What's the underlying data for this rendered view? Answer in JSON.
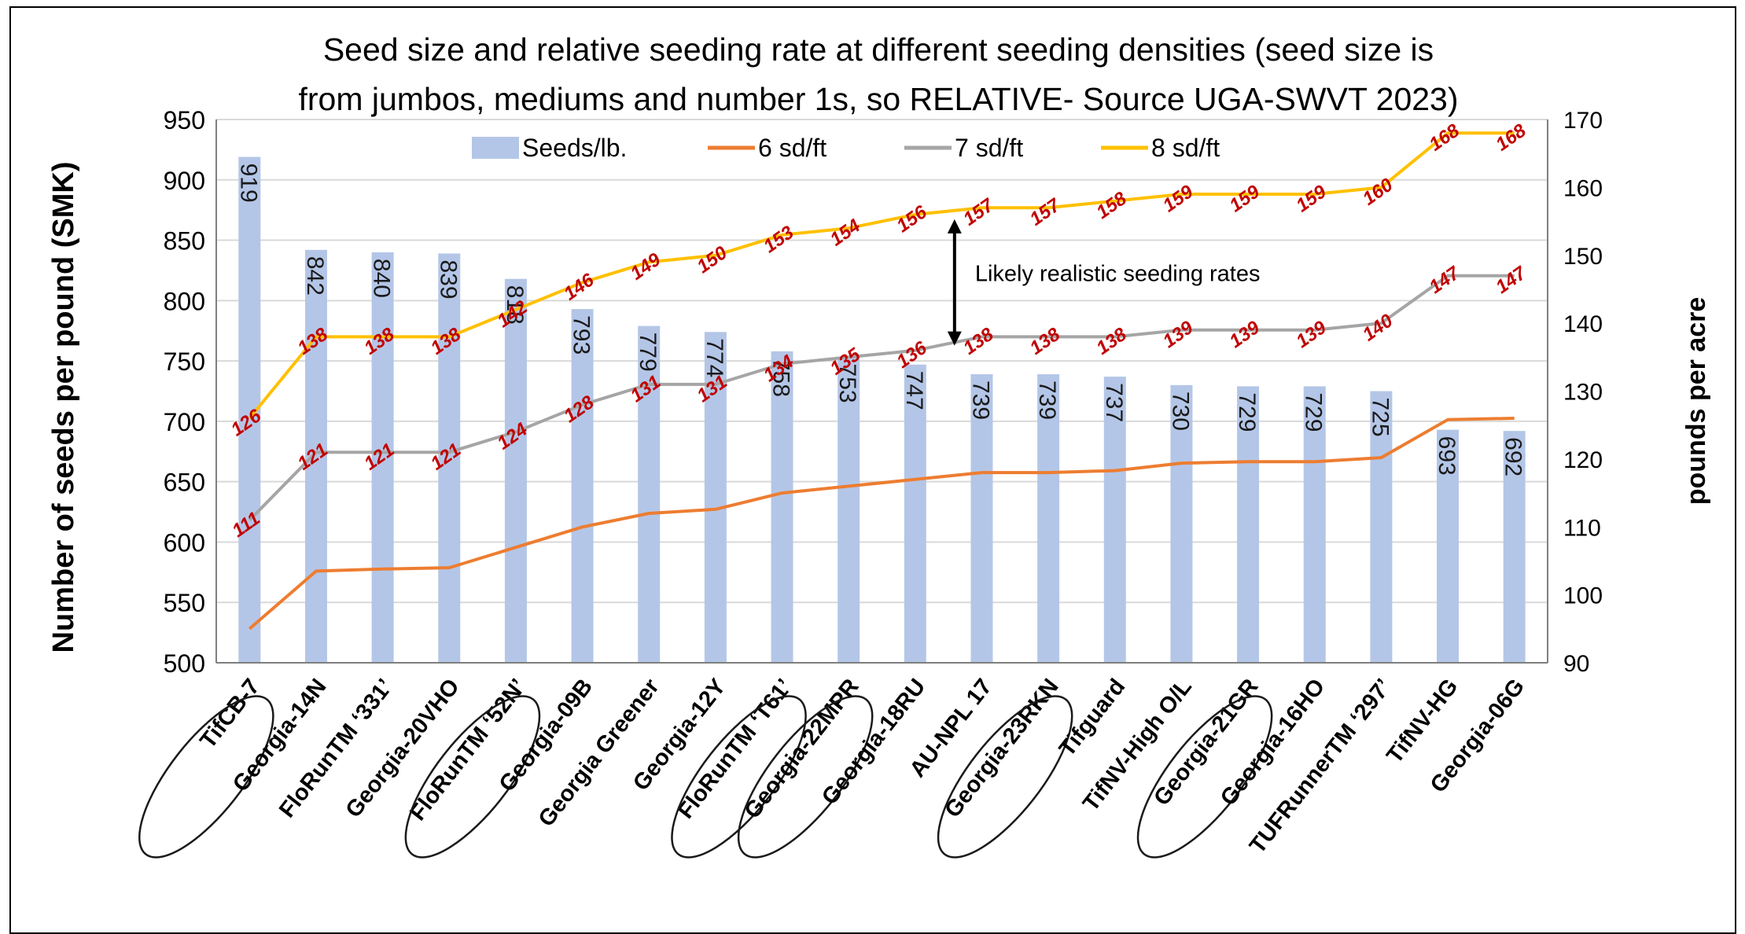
{
  "chart_data": {
    "type": "bar",
    "title": "Seed size and relative seeding rate at different seeding densities (seed size is from jumbos, mediums and number 1s, so RELATIVE- Source UGA-SWVT 2023)",
    "title_lines": [
      "Seed size and relative seeding rate at different seeding densities (seed size is",
      "from jumbos, mediums and number 1s, so RELATIVE- Source UGA-SWVT 2023)"
    ],
    "ylabel": "Number of seeds per pound (SMK)",
    "y2label": "pounds per acre",
    "ylim": [
      500,
      950
    ],
    "y2lim": [
      90,
      170
    ],
    "yticks": [
      "500",
      "550",
      "600",
      "650",
      "700",
      "750",
      "800",
      "850",
      "900",
      "950"
    ],
    "y2ticks": [
      "90",
      "100",
      "110",
      "120",
      "130",
      "140",
      "150",
      "160",
      "170"
    ],
    "grid": true,
    "legend_position": "top",
    "categories": [
      "TifCB-7",
      "Georgia-14N",
      "FloRunTM ‘331’",
      "Georgia-20VHO",
      "FloRunTM ‘52N’",
      "Georgia-09B",
      "Georgia Greener",
      "Georgia-12Y",
      "FloRunTM ‘T61’",
      "Georgia-22MPR",
      "Georgia-18RU",
      "AU-NPL 17",
      "Georgia-23RKN",
      "Tifguard",
      "TifNV-High O/L",
      "Georgia-21GR",
      "Georgia-16HO",
      "TUFRunnerTM ‘297’",
      "TifNV-HG",
      "Georgia-06G"
    ],
    "circled": [
      true,
      false,
      false,
      false,
      true,
      false,
      false,
      false,
      true,
      true,
      false,
      false,
      true,
      false,
      false,
      true,
      false,
      false,
      false,
      false
    ],
    "series": [
      {
        "name": "Seeds/lb.",
        "kind": "bar",
        "axis": "left",
        "color": "#b4c6e7",
        "values": [
          919,
          842,
          840,
          839,
          818,
          793,
          779,
          774,
          758,
          753,
          747,
          739,
          739,
          737,
          730,
          729,
          729,
          725,
          693,
          692
        ],
        "labels": [
          "919",
          "842",
          "840",
          "839",
          "818",
          "793",
          "779",
          "774",
          "758",
          "753",
          "747",
          "739",
          "739",
          "737",
          "730",
          "729",
          "729",
          "725",
          "693",
          "692"
        ]
      },
      {
        "name": "6 sd/ft",
        "kind": "line",
        "axis": "right",
        "color": "#ed7d31",
        "values": [
          95,
          103.5,
          103.8,
          104,
          107,
          110,
          112,
          112.6,
          115,
          116,
          117,
          118,
          118,
          118.3,
          119.4,
          119.6,
          119.6,
          120.2,
          125.8,
          126
        ]
      },
      {
        "name": "7 sd/ft",
        "kind": "line",
        "axis": "right",
        "color": "#a5a5a5",
        "values": [
          111,
          121,
          121,
          121,
          124,
          128,
          131,
          131,
          134,
          135,
          136,
          138,
          138,
          138,
          139,
          139,
          139,
          140,
          147,
          147
        ],
        "labels": [
          "111",
          "121",
          "121",
          "121",
          "124",
          "128",
          "131",
          "131",
          "134",
          "135",
          "136",
          "138",
          "138",
          "138",
          "139",
          "139",
          "139",
          "140",
          "147",
          "147"
        ]
      },
      {
        "name": "8 sd/ft",
        "kind": "line",
        "axis": "right",
        "color": "#ffc000",
        "values": [
          126,
          138,
          138,
          138,
          142,
          146,
          149,
          150,
          153,
          154,
          156,
          157,
          157,
          158,
          159,
          159,
          159,
          160,
          168,
          168
        ],
        "labels": [
          "126",
          "138",
          "138",
          "138",
          "142",
          "146",
          "149",
          "150",
          "153",
          "154",
          "156",
          "157",
          "157",
          "158",
          "159",
          "159",
          "159",
          "160",
          "168",
          "168"
        ]
      }
    ],
    "annotation": {
      "text": "Likely realistic seeding rates",
      "between": [
        "7 sd/ft",
        "8 sd/ft"
      ],
      "category": "Georgia-18RU"
    }
  },
  "colors": {
    "bar": "#b4c6e7",
    "value_label": "#c00000",
    "gridline": "#d9d9d9"
  }
}
